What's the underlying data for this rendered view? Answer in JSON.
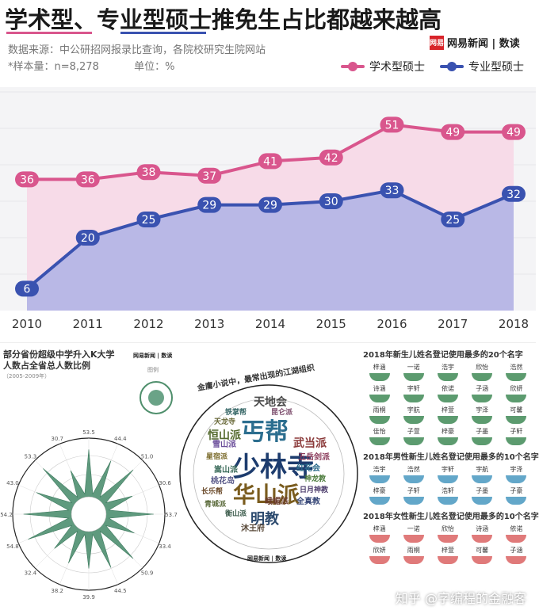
{
  "header": {
    "title": "学术型、专业型硕士推免生占比都越来越高",
    "source": "数据来源：中公研招网报录比查询，各院校研究生院网站",
    "sample": "*样本量：n=8,278",
    "unit": "单位：%",
    "brand_logo": "网易",
    "brand_name": "网易新闻 | 数读"
  },
  "colors": {
    "academic": "#d9568d",
    "professional": "#3a52b0",
    "academic_fill": "#f7dbe8",
    "professional_fill": "#b9b8e6"
  },
  "chart_data": {
    "type": "area",
    "title": "学术型、专业型硕士推免生占比都越来越高",
    "xlabel": "",
    "ylabel": "%",
    "ylim": [
      0,
      60
    ],
    "grid": true,
    "legend_position": "top-right",
    "categories": [
      "2010",
      "2011",
      "2012",
      "2013",
      "2014",
      "2015",
      "2016",
      "2017",
      "2018"
    ],
    "series": [
      {
        "name": "学术型硕士",
        "values": [
          36,
          36,
          38,
          37,
          41,
          42,
          51,
          49,
          49
        ]
      },
      {
        "name": "专业型硕士",
        "values": [
          6,
          20,
          25,
          29,
          29,
          30,
          33,
          25,
          32
        ]
      }
    ]
  },
  "panels": {
    "left": {
      "title": "部分省份超级中学升入K大学人数占全省总人数比例",
      "subtitle": "（2005-2009年）",
      "brand": "网易新闻 | 数读",
      "legend_label": "图例",
      "radial_values": [
        "53.5",
        "44.4",
        "51.0",
        "30.6",
        "53.7",
        "33.4",
        "50.9",
        "44.5",
        "39.9",
        "38.2",
        "32.4",
        "54.8",
        "54.2",
        "43.0",
        "53.3",
        "30.7"
      ]
    },
    "middle": {
      "title": "金庸小说中，最常出现的江湖组织",
      "brand": "网易新闻 | 数读",
      "words": [
        "少林寺",
        "丐帮",
        "华山派",
        "恒山派",
        "明教",
        "武当派",
        "天地会",
        "雪山派",
        "星宿派",
        "嵩山派",
        "桃花岛",
        "长乐帮",
        "五岳剑派",
        "红花会",
        "神龙教",
        "峨嵋派",
        "全真教",
        "青城派",
        "昆仑派",
        "铁掌帮",
        "天龙寺",
        "日月神教",
        "沐王府",
        "衡山派"
      ]
    },
    "right": {
      "title": "2018年新生儿姓名登记使用最多的20个名字",
      "names_all": [
        "梓涵",
        "一诺",
        "浩宇",
        "欣怡",
        "浩然",
        "诗涵",
        "宇轩",
        "依诺",
        "子涵",
        "欣妍",
        "雨桐",
        "宇航",
        "梓萱",
        "宇泽",
        "可馨",
        "佳怡",
        "子萱",
        "梓豪",
        "子墨",
        "子轩"
      ],
      "boys_title": "2018年男性新生儿姓名登记使用最多的10个名字",
      "names_boys": [
        "浩宇",
        "浩然",
        "宇轩",
        "宇航",
        "宇泽",
        "梓豪",
        "子轩",
        "浩轩",
        "子墨",
        "子豪"
      ],
      "girls_title": "2018年女性新生儿姓名登记使用最多的10个名字",
      "names_girls": [
        "梓涵",
        "一诺",
        "欣怡",
        "诗涵",
        "依诺",
        "欣妍",
        "雨桐",
        "梓萱",
        "可馨",
        "子涵"
      ]
    }
  },
  "watermark": "知乎 @字编程的金融客"
}
